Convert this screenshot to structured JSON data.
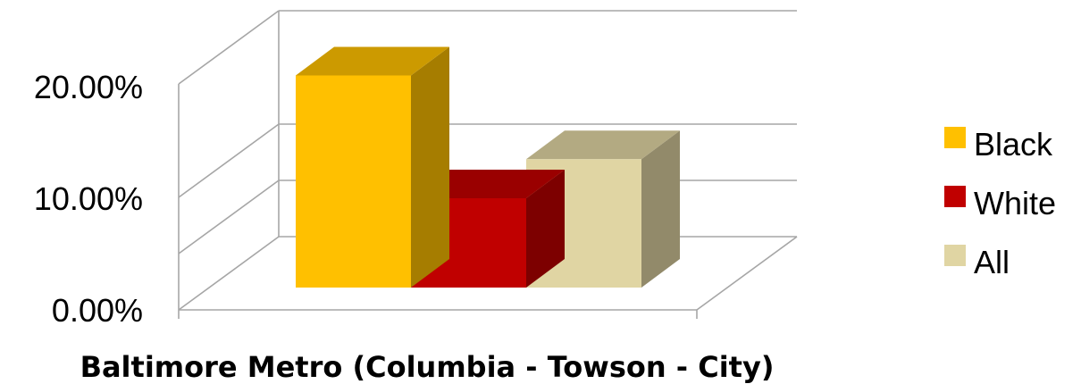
{
  "chart_data": {
    "type": "bar",
    "subtype": "3d-clustered-column",
    "categories": [
      "Baltimore Metro (Columbia - Towson - City)"
    ],
    "series": [
      {
        "name": "Black",
        "values": [
          0.19
        ],
        "color": "#FFC000"
      },
      {
        "name": "White",
        "values": [
          0.08
        ],
        "color": "#C00000"
      },
      {
        "name": "All",
        "values": [
          0.115
        ],
        "color": "#E0D5A3"
      }
    ],
    "y_ticks": [
      "0.00%",
      "10.00%",
      "20.00%"
    ],
    "ylim": [
      0,
      0.2
    ],
    "grid": true,
    "legend_position": "right",
    "title": "",
    "xlabel": "",
    "ylabel": ""
  }
}
